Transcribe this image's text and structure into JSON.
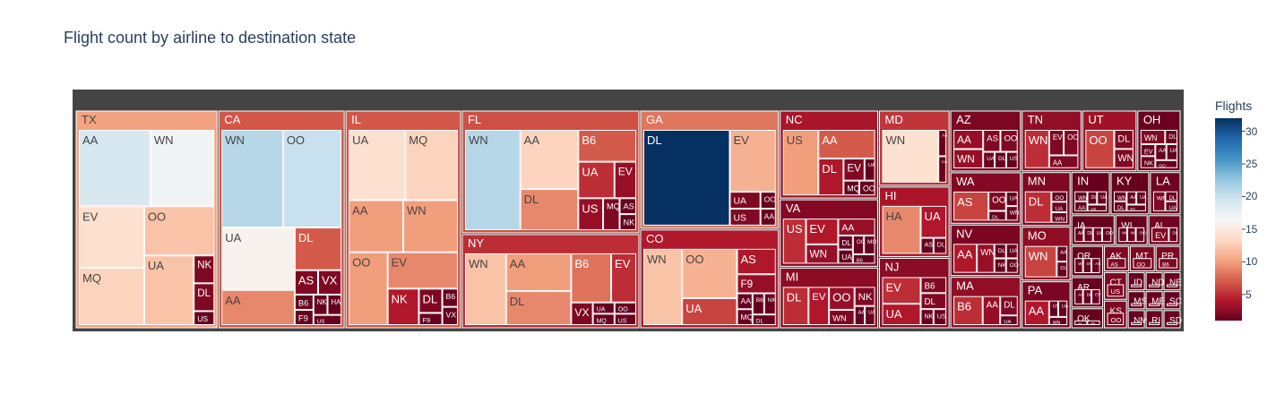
{
  "title": "Flight count by airline to destination state",
  "colorbar": {
    "title": "Flights",
    "ticks": [
      5,
      10,
      15,
      20,
      25,
      30
    ],
    "range": [
      1,
      32
    ],
    "colorscale": [
      "#67001f",
      "#b2182b",
      "#d6604d",
      "#f4a582",
      "#fddbc7",
      "#f7f7f7",
      "#d1e5f0",
      "#92c5de",
      "#4393c3",
      "#2166ac",
      "#053061"
    ]
  },
  "chart_data": {
    "type": "treemap",
    "value_label": "Flights",
    "states": [
      {
        "state": "TX",
        "airlines": [
          {
            "airline": "AA",
            "flights": 19
          },
          {
            "airline": "WN",
            "flights": 17
          },
          {
            "airline": "EV",
            "flights": 14
          },
          {
            "airline": "OO",
            "flights": 12
          },
          {
            "airline": "MQ",
            "flights": 13
          },
          {
            "airline": "UA",
            "flights": 12
          },
          {
            "airline": "NK",
            "flights": 2
          },
          {
            "airline": "DL",
            "flights": 2
          },
          {
            "airline": "US",
            "flights": 1
          }
        ]
      },
      {
        "state": "CA",
        "airlines": [
          {
            "airline": "WN",
            "flights": 21
          },
          {
            "airline": "OO",
            "flights": 20
          },
          {
            "airline": "UA",
            "flights": 16
          },
          {
            "airline": "AA",
            "flights": 9
          },
          {
            "airline": "DL",
            "flights": 7
          },
          {
            "airline": "AS",
            "flights": 2
          },
          {
            "airline": "VX",
            "flights": 2
          },
          {
            "airline": "B6",
            "flights": 1
          },
          {
            "airline": "F9",
            "flights": 1
          },
          {
            "airline": "NK",
            "flights": 1
          },
          {
            "airline": "HA",
            "flights": 1
          },
          {
            "airline": "US",
            "flights": 1
          }
        ]
      },
      {
        "state": "IL",
        "airlines": [
          {
            "airline": "UA",
            "flights": 14
          },
          {
            "airline": "AA",
            "flights": 10
          },
          {
            "airline": "WN",
            "flights": 10
          },
          {
            "airline": "EV",
            "flights": 9
          },
          {
            "airline": "MQ",
            "flights": 13
          },
          {
            "airline": "OO",
            "flights": 10
          },
          {
            "airline": "NK",
            "flights": 4
          },
          {
            "airline": "DL",
            "flights": 2
          },
          {
            "airline": "F9",
            "flights": 1
          },
          {
            "airline": "B6",
            "flights": 1
          },
          {
            "airline": "VX",
            "flights": 1
          }
        ]
      },
      {
        "state": "FL",
        "airlines": [
          {
            "airline": "WN",
            "flights": 21
          },
          {
            "airline": "AA",
            "flights": 13
          },
          {
            "airline": "B6",
            "flights": 7
          },
          {
            "airline": "UA",
            "flights": 5
          },
          {
            "airline": "DL",
            "flights": 9
          },
          {
            "airline": "EV",
            "flights": 3
          },
          {
            "airline": "US",
            "flights": 3
          },
          {
            "airline": "MQ",
            "flights": 2
          },
          {
            "airline": "AS",
            "flights": 1
          },
          {
            "airline": "NK",
            "flights": 1
          }
        ]
      },
      {
        "state": "GA",
        "airlines": [
          {
            "airline": "DL",
            "flights": 32
          },
          {
            "airline": "EV",
            "flights": 11
          },
          {
            "airline": "UA",
            "flights": 2
          },
          {
            "airline": "OO",
            "flights": 1
          },
          {
            "airline": "US",
            "flights": 2
          },
          {
            "airline": "AA",
            "flights": 1
          }
        ]
      },
      {
        "state": "NY",
        "airlines": [
          {
            "airline": "WN",
            "flights": 12
          },
          {
            "airline": "DL",
            "flights": 9
          },
          {
            "airline": "B6",
            "flights": 8
          },
          {
            "airline": "AA",
            "flights": 10
          },
          {
            "airline": "EV",
            "flights": 5
          },
          {
            "airline": "VX",
            "flights": 2
          },
          {
            "airline": "UA",
            "flights": 1
          },
          {
            "airline": "MQ",
            "flights": 1
          },
          {
            "airline": "OO",
            "flights": 1
          },
          {
            "airline": "US",
            "flights": 1
          }
        ]
      },
      {
        "state": "CO",
        "airlines": [
          {
            "airline": "WN",
            "flights": 12
          },
          {
            "airline": "OO",
            "flights": 11
          },
          {
            "airline": "UA",
            "flights": 6
          },
          {
            "airline": "AS",
            "flights": 4
          },
          {
            "airline": "F9",
            "flights": 3
          },
          {
            "airline": "AA",
            "flights": 1
          },
          {
            "airline": "MQ",
            "flights": 1
          },
          {
            "airline": "B6",
            "flights": 1
          },
          {
            "airline": "NK",
            "flights": 1
          },
          {
            "airline": "DL",
            "flights": 1
          }
        ]
      },
      {
        "state": "NC",
        "airlines": [
          {
            "airline": "US",
            "flights": 10
          },
          {
            "airline": "DL",
            "flights": 4
          },
          {
            "airline": "EV",
            "flights": 2
          },
          {
            "airline": "AA",
            "flights": 7
          },
          {
            "airline": "UA",
            "flights": 1
          },
          {
            "airline": "MQ",
            "flights": 1
          },
          {
            "airline": "OO",
            "flights": 1
          }
        ]
      },
      {
        "state": "VA",
        "airlines": [
          {
            "airline": "US",
            "flights": 5
          },
          {
            "airline": "WN",
            "flights": 3
          },
          {
            "airline": "AA",
            "flights": 3
          },
          {
            "airline": "EV",
            "flights": 4
          },
          {
            "airline": "DL",
            "flights": 1
          },
          {
            "airline": "UA",
            "flights": 1
          },
          {
            "airline": "OO",
            "flights": 1
          },
          {
            "airline": "MQ",
            "flights": 1
          },
          {
            "airline": "B6",
            "flights": 1
          }
        ]
      },
      {
        "state": "AZ",
        "airlines": [
          {
            "airline": "AA",
            "flights": 3
          },
          {
            "airline": "WN",
            "flights": 3
          },
          {
            "airline": "AS",
            "flights": 2
          },
          {
            "airline": "OO",
            "flights": 2
          },
          {
            "airline": "UA",
            "flights": 1
          },
          {
            "airline": "DL",
            "flights": 1
          },
          {
            "airline": "US",
            "flights": 1
          }
        ]
      },
      {
        "state": "HI",
        "airlines": [
          {
            "airline": "HA",
            "flights": 9
          },
          {
            "airline": "UA",
            "flights": 4
          },
          {
            "airline": "AS",
            "flights": 1
          },
          {
            "airline": "DL",
            "flights": 1
          }
        ]
      },
      {
        "state": "MD",
        "airlines": [
          {
            "airline": "WN",
            "flights": 14
          },
          {
            "airline": "AA",
            "flights": 1
          },
          {
            "airline": "UA",
            "flights": 1
          }
        ]
      },
      {
        "state": "UT",
        "airlines": [
          {
            "airline": "OO",
            "flights": 6
          },
          {
            "airline": "DL",
            "flights": 2
          },
          {
            "airline": "WN",
            "flights": 2
          }
        ]
      },
      {
        "state": "WA",
        "airlines": [
          {
            "airline": "AS",
            "flights": 6
          },
          {
            "airline": "OO",
            "flights": 2
          },
          {
            "airline": "DL",
            "flights": 1
          },
          {
            "airline": "UA",
            "flights": 1
          },
          {
            "airline": "WN",
            "flights": 1
          }
        ]
      },
      {
        "state": "MI",
        "airlines": [
          {
            "airline": "DL",
            "flights": 5
          },
          {
            "airline": "OO",
            "flights": 3
          },
          {
            "airline": "WN",
            "flights": 2
          },
          {
            "airline": "EV",
            "flights": 4
          },
          {
            "airline": "NK",
            "flights": 2
          },
          {
            "airline": "AA",
            "flights": 1
          },
          {
            "airline": "UA",
            "flights": 1
          }
        ]
      },
      {
        "state": "NV",
        "airlines": [
          {
            "airline": "AA",
            "flights": 4
          },
          {
            "airline": "DL",
            "flights": 1
          },
          {
            "airline": "UA",
            "flights": 1
          },
          {
            "airline": "WN",
            "flights": 3
          },
          {
            "airline": "NK",
            "flights": 1
          },
          {
            "airline": "OO",
            "flights": 1
          }
        ]
      },
      {
        "state": "MA",
        "airlines": [
          {
            "airline": "B6",
            "flights": 5
          },
          {
            "airline": "DL",
            "flights": 2
          },
          {
            "airline": "AA",
            "flights": 3
          },
          {
            "airline": "UA",
            "flights": 1
          }
        ]
      },
      {
        "state": "NJ",
        "airlines": [
          {
            "airline": "EV",
            "flights": 5
          },
          {
            "airline": "UA",
            "flights": 4
          },
          {
            "airline": "B6",
            "flights": 2
          },
          {
            "airline": "DL",
            "flights": 2
          },
          {
            "airline": "NK",
            "flights": 1
          },
          {
            "airline": "US",
            "flights": 1
          }
        ]
      },
      {
        "state": "TN",
        "airlines": [
          {
            "airline": "WN",
            "flights": 5
          },
          {
            "airline": "EV",
            "flights": 2
          },
          {
            "airline": "OO",
            "flights": 2
          },
          {
            "airline": "AA",
            "flights": 2
          }
        ]
      },
      {
        "state": "OH",
        "airlines": [
          {
            "airline": "WN",
            "flights": 2
          },
          {
            "airline": "DL",
            "flights": 1
          },
          {
            "airline": "EV",
            "flights": 1
          },
          {
            "airline": "NK",
            "flights": 1
          },
          {
            "airline": "AA",
            "flights": 1
          },
          {
            "airline": "UA",
            "flights": 1
          },
          {
            "airline": "OO",
            "flights": 1
          }
        ]
      },
      {
        "state": "MN",
        "airlines": [
          {
            "airline": "DL",
            "flights": 5
          },
          {
            "airline": "OO",
            "flights": 1
          },
          {
            "airline": "UA",
            "flights": 1
          },
          {
            "airline": "WN",
            "flights": 1
          }
        ]
      },
      {
        "state": "WI",
        "airlines": [
          {
            "airline": "MQ",
            "flights": 1
          },
          {
            "airline": "WN",
            "flights": 1
          },
          {
            "airline": "OO",
            "flights": 1
          }
        ]
      },
      {
        "state": "LA",
        "airlines": [
          {
            "airline": "WN",
            "flights": 2
          },
          {
            "airline": "DL",
            "flights": 1
          },
          {
            "airline": "UA",
            "flights": 1
          }
        ]
      },
      {
        "state": "AL",
        "airlines": [
          {
            "airline": "EV",
            "flights": 2
          },
          {
            "airline": "DL",
            "flights": 1
          }
        ]
      },
      {
        "state": "MO",
        "airlines": [
          {
            "airline": "WN",
            "flights": 6
          },
          {
            "airline": "AA",
            "flights": 1
          },
          {
            "airline": "DL",
            "flights": 1
          }
        ]
      },
      {
        "state": "PA",
        "airlines": [
          {
            "airline": "AA",
            "flights": 4
          },
          {
            "airline": "US",
            "flights": 1
          },
          {
            "airline": "UA",
            "flights": 1
          },
          {
            "airline": "WN",
            "flights": 1
          }
        ]
      },
      {
        "state": "OR",
        "airlines": [
          {
            "airline": "WN",
            "flights": 1
          },
          {
            "airline": "OO",
            "flights": 1
          },
          {
            "airline": "AS",
            "flights": 1
          }
        ]
      },
      {
        "state": "AR",
        "airlines": [
          {
            "airline": "AA",
            "flights": 1
          },
          {
            "airline": "DL",
            "flights": 1
          },
          {
            "airline": "EV",
            "flights": 1
          }
        ]
      },
      {
        "state": "IN",
        "airlines": [
          {
            "airline": "WN",
            "flights": 1
          },
          {
            "airline": "AA",
            "flights": 1
          },
          {
            "airline": "DL",
            "flights": 1
          },
          {
            "airline": "UA",
            "flights": 1
          },
          {
            "airline": "US",
            "flights": 1
          }
        ]
      },
      {
        "state": "KY",
        "airlines": [
          {
            "airline": "WN",
            "flights": 1
          },
          {
            "airline": "DL",
            "flights": 1
          },
          {
            "airline": "AA",
            "flights": 1
          },
          {
            "airline": "UA",
            "flights": 1
          },
          {
            "airline": "EV",
            "flights": 1
          }
        ]
      },
      {
        "state": "IA",
        "airlines": [
          {
            "airline": "AA",
            "flights": 1
          },
          {
            "airline": "DL",
            "flights": 1
          },
          {
            "airline": "UA",
            "flights": 1
          },
          {
            "airline": "OO",
            "flights": 1
          }
        ]
      },
      {
        "state": "OK",
        "airlines": [
          {
            "airline": "AA",
            "flights": 1
          },
          {
            "airline": "WN",
            "flights": 1
          }
        ]
      },
      {
        "state": "AK",
        "airlines": [
          {
            "airline": "AS",
            "flights": 2
          }
        ]
      },
      {
        "state": "MT",
        "airlines": [
          {
            "airline": "OO",
            "flights": 2
          }
        ]
      },
      {
        "state": "PR",
        "airlines": [
          {
            "airline": "B6",
            "flights": 2
          }
        ]
      },
      {
        "state": "CT",
        "airlines": [
          {
            "airline": "US",
            "flights": 2
          }
        ]
      },
      {
        "state": "ID",
        "airlines": [
          {
            "airline": "OO",
            "flights": 1
          }
        ]
      },
      {
        "state": "ND",
        "airlines": [
          {
            "airline": "OO",
            "flights": 1
          }
        ]
      },
      {
        "state": "NE",
        "airlines": [
          {
            "airline": "OO",
            "flights": 1
          }
        ]
      },
      {
        "state": "KS",
        "airlines": [
          {
            "airline": "OO",
            "flights": 2
          }
        ]
      },
      {
        "state": "MS",
        "airlines": [
          {
            "airline": "DL",
            "flights": 1
          }
        ]
      },
      {
        "state": "NM",
        "airlines": [
          {
            "airline": "OO",
            "flights": 1
          }
        ]
      },
      {
        "state": "ME",
        "airlines": [
          {
            "airline": "EV",
            "flights": 1
          }
        ]
      },
      {
        "state": "SC",
        "airlines": [
          {
            "airline": "EV",
            "flights": 1
          }
        ]
      },
      {
        "state": "RI",
        "airlines": [
          {
            "airline": "EV",
            "flights": 1
          }
        ]
      },
      {
        "state": "SD",
        "airlines": [
          {
            "airline": "OO",
            "flights": 1
          }
        ]
      }
    ]
  }
}
